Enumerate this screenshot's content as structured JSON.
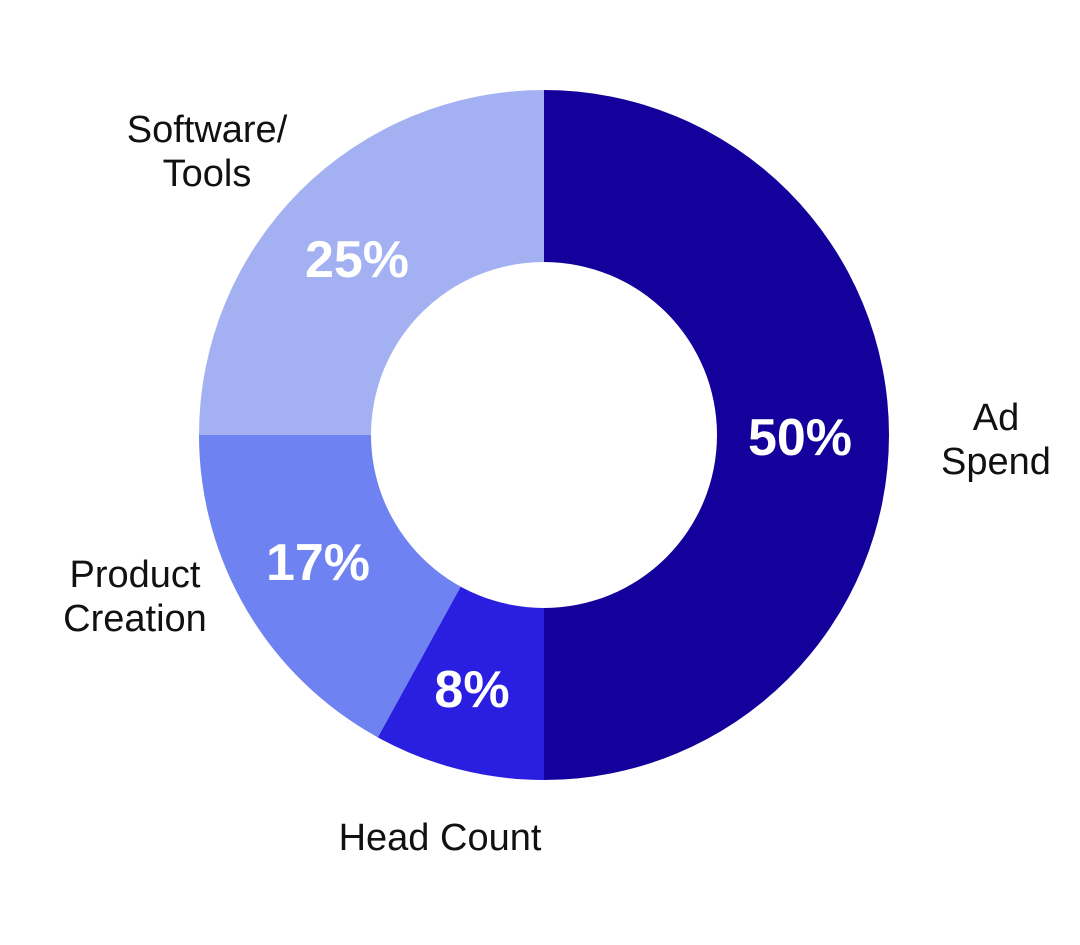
{
  "chart_data": {
    "type": "pie",
    "variant": "donut",
    "title": "",
    "slices": [
      {
        "label": "Ad Spend",
        "label_lines": [
          "Ad",
          "Spend"
        ],
        "value": 50,
        "value_label": "50%",
        "color": "#14009a"
      },
      {
        "label": "Head Count",
        "label_lines": [
          "Head Count"
        ],
        "value": 8,
        "value_label": "8%",
        "color": "#2a1fe0"
      },
      {
        "label": "Product Creation",
        "label_lines": [
          "Product",
          "Creation"
        ],
        "value": 17,
        "value_label": "17%",
        "color": "#6f82f1"
      },
      {
        "label": "Software/ Tools",
        "label_lines": [
          "Software/",
          "Tools"
        ],
        "value": 25,
        "value_label": "25%",
        "color": "#a3b1f2"
      }
    ],
    "start_angle": "12 o'clock",
    "direction": "clockwise",
    "legend": "none"
  }
}
